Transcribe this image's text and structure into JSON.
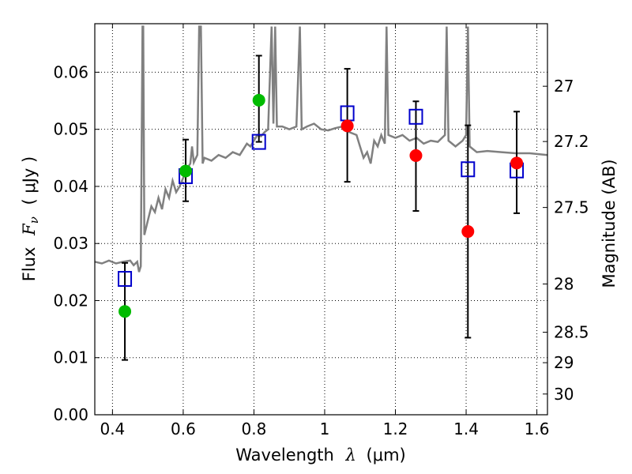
{
  "chart_data": {
    "type": "scatter",
    "xlabel_text": "Wavelength",
    "xlabel_symbol": "λ",
    "xlabel_unit": "(μm)",
    "ylabel_text": "Flux",
    "ylabel_symbol": "F",
    "ylabel_sub": "ν",
    "ylabel_unit": "( μJy )",
    "ylabel_right": "Magnitude (AB)",
    "xlim": [
      0.35,
      1.63
    ],
    "ylim": [
      0.0,
      0.0685
    ],
    "grid": true,
    "xticks": [
      0.4,
      0.6,
      0.8,
      1.0,
      1.2,
      1.4,
      1.6
    ],
    "xtick_labels": [
      "0.4",
      "0.6",
      "0.8",
      "1",
      "1.2",
      "1.4",
      "1.6"
    ],
    "yticks": [
      0.0,
      0.01,
      0.02,
      0.03,
      0.04,
      0.05,
      0.06
    ],
    "ytick_labels": [
      "0.00",
      "0.01",
      "0.02",
      "0.03",
      "0.04",
      "0.05",
      "0.06"
    ],
    "right_ticks": [
      27,
      27.2,
      27.5,
      28,
      28.5,
      29,
      30
    ],
    "right_tick_labels": [
      "27",
      "27.2",
      "27.5",
      "28",
      "28.5",
      "29",
      "30"
    ],
    "colors": {
      "spectrum": "#808080",
      "model_box": "#0000cc",
      "green": "#00bb00",
      "red": "#ff0000",
      "errorbar": "#000000"
    },
    "spectrum": [
      [
        0.35,
        0.0268
      ],
      [
        0.37,
        0.0265
      ],
      [
        0.39,
        0.027
      ],
      [
        0.41,
        0.0265
      ],
      [
        0.43,
        0.0268
      ],
      [
        0.45,
        0.027
      ],
      [
        0.46,
        0.0262
      ],
      [
        0.47,
        0.0268
      ],
      [
        0.475,
        0.025
      ],
      [
        0.48,
        0.026
      ],
      [
        0.485,
        0.068
      ],
      [
        0.487,
        0.068
      ],
      [
        0.49,
        0.0315
      ],
      [
        0.5,
        0.034
      ],
      [
        0.51,
        0.0365
      ],
      [
        0.52,
        0.0355
      ],
      [
        0.53,
        0.038
      ],
      [
        0.54,
        0.036
      ],
      [
        0.55,
        0.0395
      ],
      [
        0.56,
        0.038
      ],
      [
        0.57,
        0.041
      ],
      [
        0.58,
        0.039
      ],
      [
        0.59,
        0.04
      ],
      [
        0.6,
        0.0415
      ],
      [
        0.61,
        0.043
      ],
      [
        0.62,
        0.044
      ],
      [
        0.625,
        0.047
      ],
      [
        0.63,
        0.0442
      ],
      [
        0.64,
        0.0455
      ],
      [
        0.645,
        0.068
      ],
      [
        0.65,
        0.068
      ],
      [
        0.655,
        0.044
      ],
      [
        0.66,
        0.045
      ],
      [
        0.68,
        0.0445
      ],
      [
        0.7,
        0.0455
      ],
      [
        0.72,
        0.045
      ],
      [
        0.74,
        0.046
      ],
      [
        0.76,
        0.0455
      ],
      [
        0.78,
        0.0475
      ],
      [
        0.79,
        0.047
      ],
      [
        0.8,
        0.048
      ],
      [
        0.81,
        0.049
      ],
      [
        0.82,
        0.0488
      ],
      [
        0.83,
        0.0495
      ],
      [
        0.84,
        0.05
      ],
      [
        0.85,
        0.068
      ],
      [
        0.855,
        0.051
      ],
      [
        0.86,
        0.068
      ],
      [
        0.865,
        0.0505
      ],
      [
        0.88,
        0.0505
      ],
      [
        0.9,
        0.05
      ],
      [
        0.92,
        0.0505
      ],
      [
        0.93,
        0.068
      ],
      [
        0.935,
        0.05
      ],
      [
        0.95,
        0.0505
      ],
      [
        0.97,
        0.051
      ],
      [
        0.99,
        0.05
      ],
      [
        1.01,
        0.0498
      ],
      [
        1.03,
        0.0502
      ],
      [
        1.05,
        0.0505
      ],
      [
        1.07,
        0.0495
      ],
      [
        1.09,
        0.049
      ],
      [
        1.1,
        0.047
      ],
      [
        1.11,
        0.045
      ],
      [
        1.12,
        0.046
      ],
      [
        1.13,
        0.044
      ],
      [
        1.14,
        0.048
      ],
      [
        1.15,
        0.047
      ],
      [
        1.16,
        0.049
      ],
      [
        1.17,
        0.0475
      ],
      [
        1.175,
        0.068
      ],
      [
        1.18,
        0.049
      ],
      [
        1.2,
        0.0485
      ],
      [
        1.22,
        0.049
      ],
      [
        1.24,
        0.048
      ],
      [
        1.26,
        0.0485
      ],
      [
        1.28,
        0.0475
      ],
      [
        1.3,
        0.048
      ],
      [
        1.32,
        0.0478
      ],
      [
        1.34,
        0.049
      ],
      [
        1.345,
        0.068
      ],
      [
        1.35,
        0.048
      ],
      [
        1.37,
        0.047
      ],
      [
        1.39,
        0.048
      ],
      [
        1.4,
        0.049
      ],
      [
        1.405,
        0.068
      ],
      [
        1.41,
        0.047
      ],
      [
        1.43,
        0.046
      ],
      [
        1.46,
        0.0462
      ],
      [
        1.5,
        0.046
      ],
      [
        1.54,
        0.0458
      ],
      [
        1.58,
        0.0458
      ],
      [
        1.63,
        0.0455
      ]
    ],
    "photometry": [
      {
        "x": 0.435,
        "box": 0.0238,
        "point": 0.0181,
        "point_color": "green",
        "err": [
          0.0096,
          0.0266
        ]
      },
      {
        "x": 0.607,
        "box": 0.0418,
        "point": 0.0427,
        "point_color": "green",
        "err": [
          0.0374,
          0.0482
        ]
      },
      {
        "x": 0.814,
        "box": 0.0478,
        "point": 0.0551,
        "point_color": "green",
        "err": [
          0.0478,
          0.0629
        ]
      },
      {
        "x": 1.064,
        "box": 0.0528,
        "point": 0.0506,
        "point_color": "red",
        "err": [
          0.0408,
          0.0606
        ]
      },
      {
        "x": 1.258,
        "box": 0.0522,
        "point": 0.0454,
        "point_color": "red",
        "err": [
          0.0357,
          0.0549
        ]
      },
      {
        "x": 1.405,
        "box": 0.043,
        "point": 0.0321,
        "point_color": "red",
        "err": [
          0.0135,
          0.0507
        ]
      },
      {
        "x": 1.543,
        "box": 0.0428,
        "point": 0.0441,
        "point_color": "red",
        "err": [
          0.0353,
          0.0531
        ]
      }
    ]
  }
}
